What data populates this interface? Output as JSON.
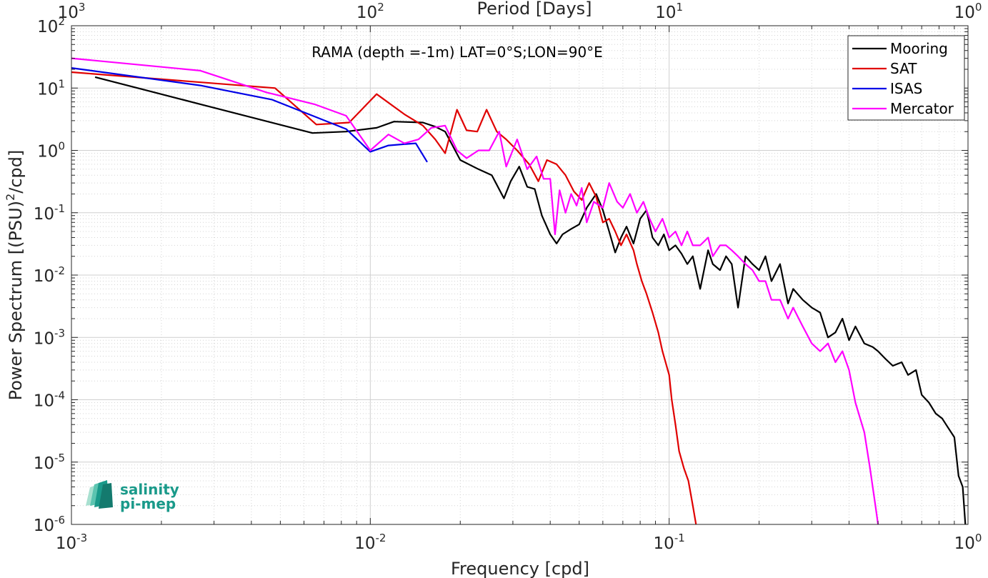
{
  "chart_data": {
    "type": "line",
    "title": "RAMA (depth =-1m) LAT=0°S;LON=90°E",
    "xlabel": "Frequency [cpd]",
    "ylabel": "Power Spectrum [(PSU)^2/cpd]",
    "ylabel_parts": {
      "pre": "Power Spectrum [(PSU)",
      "sup": "2",
      "post": "/cpd]"
    },
    "top_xlabel": "Period [Days]",
    "xscale": "log",
    "yscale": "log",
    "xlim": [
      0.001,
      1
    ],
    "ylim": [
      1e-06,
      100
    ],
    "grid": true,
    "legend_position": "top-right",
    "x_ticks": [
      {
        "value": 0.001,
        "base": "10",
        "exp": "-3"
      },
      {
        "value": 0.01,
        "base": "10",
        "exp": "-2"
      },
      {
        "value": 0.1,
        "base": "10",
        "exp": "-1"
      },
      {
        "value": 1,
        "base": "10",
        "exp": "0"
      }
    ],
    "top_ticks": [
      {
        "value": 0.001,
        "base": "10",
        "exp": "3"
      },
      {
        "value": 0.01,
        "base": "10",
        "exp": "2"
      },
      {
        "value": 0.1,
        "base": "10",
        "exp": "1"
      },
      {
        "value": 1,
        "base": "10",
        "exp": "0"
      }
    ],
    "y_ticks": [
      {
        "value": 100,
        "base": "10",
        "exp": "2"
      },
      {
        "value": 10,
        "base": "10",
        "exp": "1"
      },
      {
        "value": 1,
        "base": "10",
        "exp": "0"
      },
      {
        "value": 0.1,
        "base": "10",
        "exp": "-1"
      },
      {
        "value": 0.01,
        "base": "10",
        "exp": "-2"
      },
      {
        "value": 0.001,
        "base": "10",
        "exp": "-3"
      },
      {
        "value": 0.0001,
        "base": "10",
        "exp": "-4"
      },
      {
        "value": 1e-05,
        "base": "10",
        "exp": "-5"
      },
      {
        "value": 1e-06,
        "base": "10",
        "exp": "-6"
      }
    ],
    "series": [
      {
        "name": "Mooring",
        "color": "#000000",
        "x": [
          0.0012,
          0.0027,
          0.0064,
          0.0083,
          0.0105,
          0.012,
          0.015,
          0.0165,
          0.0178,
          0.02,
          0.023,
          0.0255,
          0.028,
          0.0295,
          0.0315,
          0.0335,
          0.0355,
          0.0375,
          0.04,
          0.042,
          0.044,
          0.047,
          0.05,
          0.053,
          0.057,
          0.06,
          0.063,
          0.066,
          0.069,
          0.072,
          0.076,
          0.08,
          0.084,
          0.088,
          0.092,
          0.096,
          0.1,
          0.105,
          0.11,
          0.115,
          0.12,
          0.127,
          0.135,
          0.14,
          0.148,
          0.155,
          0.162,
          0.17,
          0.18,
          0.19,
          0.2,
          0.21,
          0.22,
          0.235,
          0.25,
          0.26,
          0.28,
          0.3,
          0.32,
          0.34,
          0.36,
          0.38,
          0.4,
          0.42,
          0.45,
          0.48,
          0.5,
          0.53,
          0.56,
          0.6,
          0.63,
          0.67,
          0.7,
          0.74,
          0.78,
          0.82,
          0.86,
          0.9,
          0.93,
          0.96,
          0.98
        ],
        "y": [
          15,
          5.5,
          1.9,
          2.0,
          2.3,
          2.9,
          2.8,
          2.4,
          2.0,
          0.7,
          0.5,
          0.4,
          0.17,
          0.32,
          0.55,
          0.26,
          0.24,
          0.09,
          0.045,
          0.032,
          0.045,
          0.055,
          0.065,
          0.12,
          0.2,
          0.11,
          0.05,
          0.023,
          0.04,
          0.06,
          0.032,
          0.08,
          0.11,
          0.04,
          0.03,
          0.045,
          0.025,
          0.03,
          0.022,
          0.015,
          0.02,
          0.006,
          0.025,
          0.015,
          0.012,
          0.02,
          0.015,
          0.003,
          0.02,
          0.015,
          0.012,
          0.02,
          0.008,
          0.015,
          0.0035,
          0.006,
          0.004,
          0.003,
          0.0025,
          0.001,
          0.0012,
          0.002,
          0.0009,
          0.0015,
          0.0008,
          0.0007,
          0.0006,
          0.00045,
          0.00035,
          0.0004,
          0.00025,
          0.0003,
          0.00012,
          9e-05,
          6e-05,
          5e-05,
          3.5e-05,
          2.5e-05,
          6e-06,
          4e-06,
          1e-06
        ]
      },
      {
        "name": "SAT",
        "color": "#e00000",
        "x": [
          0.001,
          0.0048,
          0.0066,
          0.0085,
          0.0105,
          0.013,
          0.015,
          0.0165,
          0.0178,
          0.0195,
          0.021,
          0.0228,
          0.0245,
          0.0265,
          0.0285,
          0.031,
          0.034,
          0.0365,
          0.039,
          0.042,
          0.045,
          0.048,
          0.051,
          0.054,
          0.057,
          0.06,
          0.063,
          0.066,
          0.069,
          0.072,
          0.076,
          0.078,
          0.081,
          0.084,
          0.088,
          0.092,
          0.095,
          0.1,
          0.102,
          0.105,
          0.108,
          0.112,
          0.116,
          0.12,
          0.123
        ],
        "y": [
          18,
          10,
          2.6,
          2.8,
          8,
          3.8,
          2.5,
          1.5,
          0.9,
          4.5,
          2.1,
          2.0,
          4.5,
          2.0,
          1.5,
          1.0,
          0.6,
          0.32,
          0.7,
          0.6,
          0.4,
          0.22,
          0.16,
          0.3,
          0.18,
          0.07,
          0.08,
          0.05,
          0.03,
          0.045,
          0.025,
          0.015,
          0.008,
          0.005,
          0.0025,
          0.0012,
          0.0006,
          0.00025,
          0.0001,
          4e-05,
          1.5e-05,
          8e-06,
          5e-06,
          2e-06,
          1e-06
        ]
      },
      {
        "name": "ISAS",
        "color": "#0000e6",
        "x": [
          0.001,
          0.0027,
          0.0047,
          0.0065,
          0.0083,
          0.01,
          0.0115,
          0.0128,
          0.0142,
          0.0155
        ],
        "y": [
          21,
          11,
          6.5,
          3.5,
          2.2,
          0.95,
          1.2,
          1.25,
          1.3,
          0.65
        ]
      },
      {
        "name": "Mercator",
        "color": "#ff00ff",
        "x": [
          0.001,
          0.0027,
          0.0045,
          0.0065,
          0.0083,
          0.01,
          0.0115,
          0.013,
          0.0145,
          0.016,
          0.0178,
          0.0195,
          0.021,
          0.023,
          0.025,
          0.027,
          0.0285,
          0.031,
          0.0335,
          0.036,
          0.038,
          0.04,
          0.0415,
          0.043,
          0.045,
          0.047,
          0.049,
          0.051,
          0.053,
          0.056,
          0.06,
          0.063,
          0.067,
          0.07,
          0.074,
          0.078,
          0.082,
          0.086,
          0.09,
          0.095,
          0.1,
          0.105,
          0.11,
          0.115,
          0.12,
          0.127,
          0.135,
          0.14,
          0.148,
          0.155,
          0.162,
          0.17,
          0.18,
          0.19,
          0.2,
          0.21,
          0.22,
          0.235,
          0.25,
          0.26,
          0.28,
          0.3,
          0.32,
          0.34,
          0.36,
          0.38,
          0.4,
          0.42,
          0.45,
          0.47,
          0.49,
          0.5
        ],
        "y": [
          30,
          19,
          8.5,
          5.5,
          3.6,
          1.0,
          1.8,
          1.3,
          1.5,
          2.3,
          2.5,
          1.0,
          0.75,
          1.0,
          1.0,
          2.0,
          0.55,
          1.5,
          0.5,
          0.8,
          0.35,
          0.35,
          0.045,
          0.23,
          0.1,
          0.2,
          0.13,
          0.25,
          0.07,
          0.15,
          0.12,
          0.3,
          0.15,
          0.12,
          0.2,
          0.1,
          0.15,
          0.08,
          0.05,
          0.08,
          0.04,
          0.05,
          0.03,
          0.05,
          0.03,
          0.03,
          0.04,
          0.02,
          0.03,
          0.03,
          0.025,
          0.02,
          0.015,
          0.012,
          0.008,
          0.008,
          0.004,
          0.004,
          0.002,
          0.003,
          0.0015,
          0.0008,
          0.0006,
          0.0008,
          0.0004,
          0.0006,
          0.0003,
          9e-05,
          3e-05,
          8e-06,
          2e-06,
          1e-06
        ]
      }
    ]
  },
  "logo": {
    "line1": "salinity",
    "line2": "pi-mep",
    "colors": [
      "#147a6e",
      "#1a9a8a",
      "#5cc4b0",
      "#a8e0d0"
    ]
  }
}
